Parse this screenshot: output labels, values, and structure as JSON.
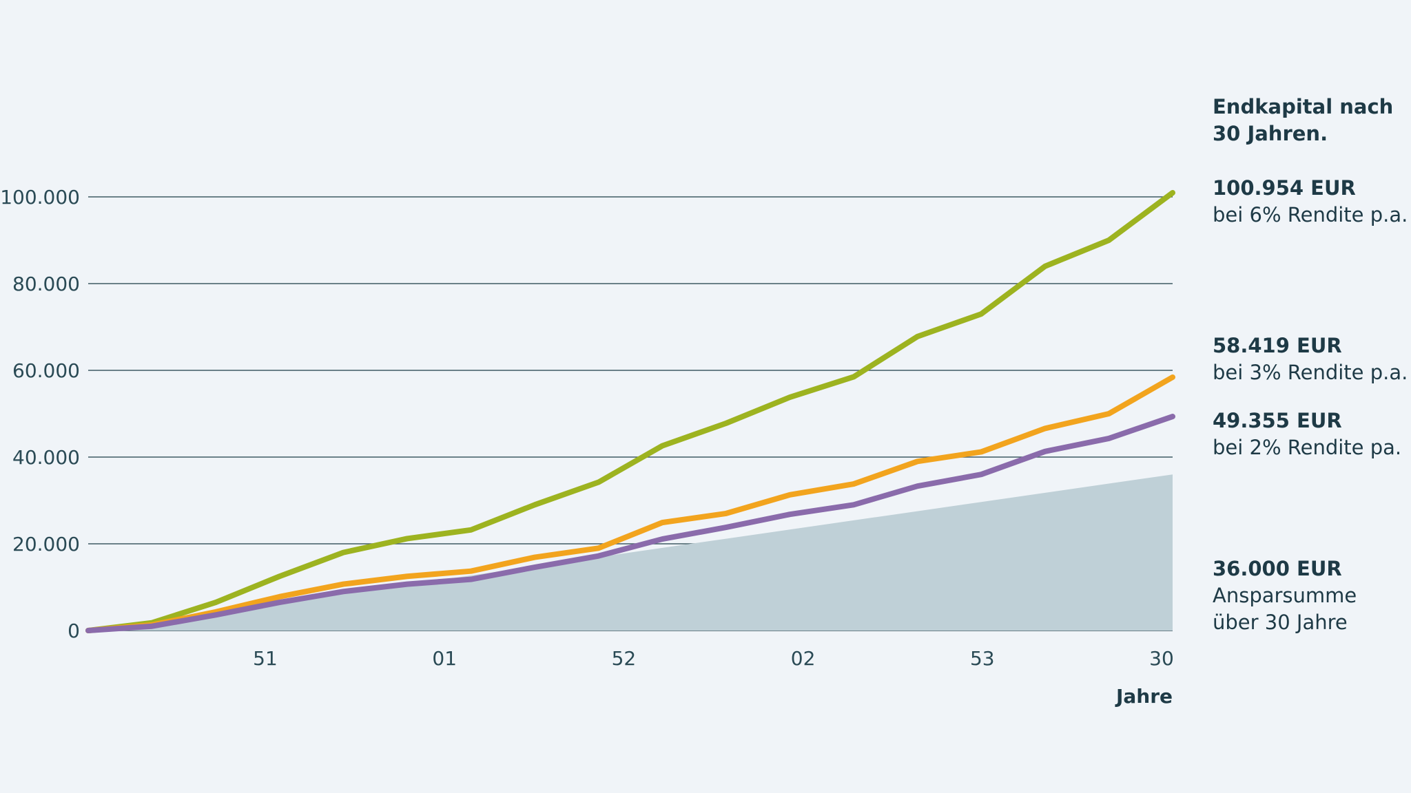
{
  "chart_data": {
    "type": "line",
    "x": [
      1,
      2,
      3,
      4,
      5,
      6,
      7,
      8,
      9,
      10,
      11,
      12,
      13,
      14,
      15,
      16,
      17,
      18
    ],
    "xlabel": "Jahre",
    "x_tick_labels": [
      "51",
      "01",
      "52",
      "02",
      "53",
      "30"
    ],
    "y_tick_labels": [
      "0",
      "20.000",
      "40.000",
      "60.000",
      "80.000",
      "100.000"
    ],
    "ylim": [
      0,
      100000
    ],
    "grid": true,
    "series": [
      {
        "name": "bei 6% Rendite p.a.",
        "color": "#9db320",
        "values": [
          0,
          1800,
          6500,
          12500,
          18000,
          21200,
          23200,
          29000,
          34200,
          42600,
          47800,
          53800,
          58500,
          67800,
          73000,
          84000,
          90000,
          100954
        ]
      },
      {
        "name": "bei 3% Rendite p.a.",
        "color": "#f2a41e",
        "values": [
          0,
          1300,
          4300,
          7800,
          10700,
          12500,
          13700,
          16900,
          19000,
          24900,
          27000,
          31300,
          33800,
          39000,
          41200,
          46600,
          50000,
          58419
        ]
      },
      {
        "name": "bei 2% Rendite pa.",
        "color": "#8a6bab",
        "values": [
          0,
          1000,
          3600,
          6500,
          9000,
          10700,
          11800,
          14600,
          17200,
          21100,
          23800,
          26800,
          29000,
          33300,
          36000,
          41300,
          44300,
          49355
        ]
      },
      {
        "name": "Ansparsumme über 30 Jahre",
        "type": "area",
        "color": "#bfd0d7",
        "values": [
          0,
          2118,
          4235,
          6353,
          8471,
          10588,
          12706,
          14824,
          16941,
          19059,
          21176,
          23294,
          25412,
          27529,
          29647,
          31765,
          33882,
          36000
        ]
      }
    ]
  },
  "legend": {
    "title": "Endkapital nach 30 Jahren.",
    "entries": [
      {
        "amount": "100.954 EUR",
        "desc": "bei 6% Rendite p.a."
      },
      {
        "amount": "58.419 EUR",
        "desc": "bei 3% Rendite p.a."
      },
      {
        "amount": "49.355 EUR",
        "desc": "bei 2% Rendite pa."
      },
      {
        "amount": "36.000 EUR",
        "desc": "Ansparsumme über 30 Jahre"
      }
    ]
  }
}
